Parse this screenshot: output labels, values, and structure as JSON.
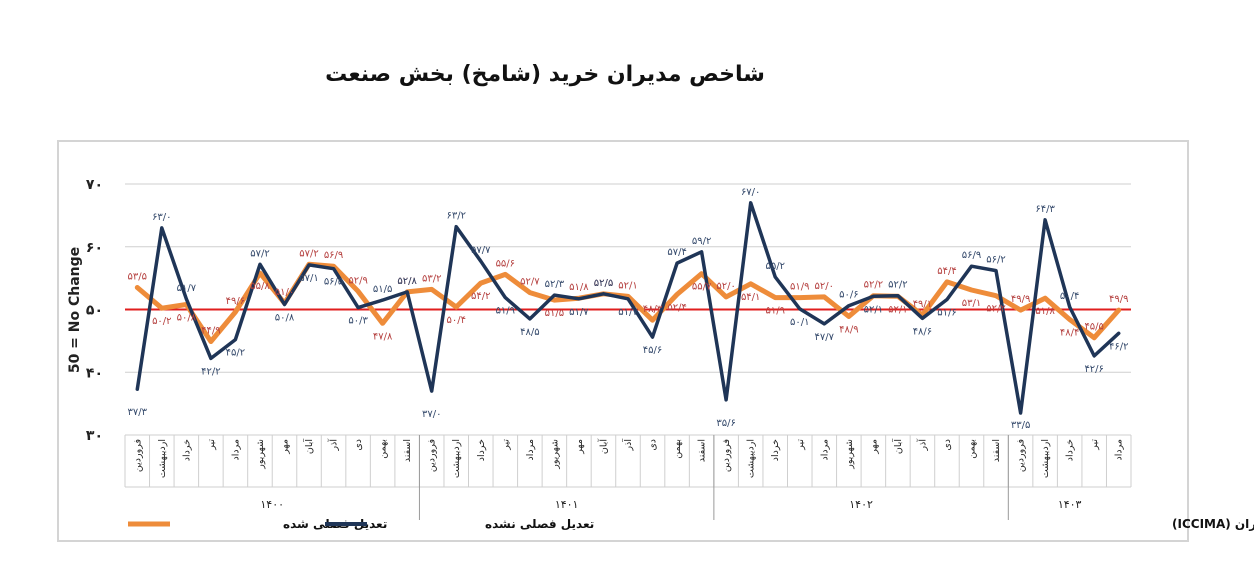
{
  "title": "شاخص مدیران خرید (شامخ) بخش صنعت",
  "source": "منبع: اتاق بازرگانی، صنایع، معادن و کشاورزی ایران (ICCIMA)",
  "chart_data": {
    "type": "line",
    "ylabel": "50 = No Change",
    "ylim": [
      30,
      70
    ],
    "yticks": [
      "۳۰",
      "۴۰",
      "۵۰",
      "۶۰",
      "۷۰"
    ],
    "reference_line": 50,
    "grid": true,
    "legend_position": "bottom-left",
    "categories": [
      "فروردین",
      "اردیبهشت",
      "خرداد",
      "تیر",
      "مرداد",
      "شهریور",
      "مهر",
      "آبان",
      "آذر",
      "دی",
      "بهمن",
      "اسفند",
      "فروردین",
      "اردیبهشت",
      "خرداد",
      "تیر",
      "مرداد",
      "شهریور",
      "مهر",
      "آبان",
      "آذر",
      "دی",
      "بهمن",
      "اسفند",
      "فروردین",
      "اردیبهشت",
      "خرداد",
      "تیر",
      "مرداد",
      "شهریور",
      "مهر",
      "آبان",
      "آذر",
      "دی",
      "بهمن",
      "اسفند",
      "فروردین",
      "اردیبهشت",
      "خرداد",
      "تیر",
      "مرداد"
    ],
    "years": [
      {
        "label": "۱۴۰۰",
        "months": 12
      },
      {
        "label": "۱۴۰۱",
        "months": 12
      },
      {
        "label": "۱۴۰۲",
        "months": 12
      },
      {
        "label": "۱۴۰۳",
        "months": 5
      }
    ],
    "series": [
      {
        "name": "تعدیل فصلی شده",
        "color": "#ee8c3a",
        "values": [
          53.5,
          50.2,
          50.8,
          44.9,
          49.6,
          55.8,
          51.0,
          57.2,
          56.9,
          52.9,
          47.8,
          52.8,
          53.2,
          50.4,
          54.2,
          55.6,
          52.7,
          51.5,
          51.8,
          52.5,
          52.1,
          48.3,
          52.4,
          55.7,
          52.0,
          54.1,
          51.9,
          51.9,
          52.0,
          48.9,
          52.2,
          52.1,
          49.1,
          54.4,
          53.1,
          52.2,
          49.9,
          51.8,
          48.4,
          45.5,
          49.9
        ],
        "labels": [
          "۵۳/۵",
          "۵۰/۲",
          "۵۰/۸",
          "۴۴/۹",
          "۴۹/۶",
          "۵۵/۸",
          "۵۱/۰",
          "۵۷/۲",
          "۵۶/۹",
          "۵۲/۹",
          "۴۷/۸",
          "۵۲/۸",
          "۵۳/۲",
          "۵۰/۴",
          "۵۴/۲",
          "۵۵/۶",
          "۵۲/۷",
          "۵۱/۵",
          "۵۱/۸",
          "۵۲/۵",
          "۵۲/۱",
          "۴۸/۳",
          "۵۲/۴",
          "۵۵/۷",
          "۵۲/۰",
          "۵۴/۱",
          "۵۱/۹",
          "۵۱/۹",
          "۵۲/۰",
          "۴۸/۹",
          "۵۲/۲",
          "۵۲/۱",
          "۴۹/۱",
          "۵۴/۴",
          "۵۳/۱",
          "۵۲/۲",
          "۴۹/۹",
          "۵۱/۸",
          "۴۸/۴",
          "۴۵/۵",
          "۴۹/۹"
        ]
      },
      {
        "name": "تعدیل فصلی نشده",
        "color": "#1f3557",
        "values": [
          37.3,
          63.0,
          51.7,
          42.2,
          45.2,
          57.2,
          50.8,
          57.1,
          56.5,
          50.3,
          51.5,
          52.8,
          37.0,
          63.2,
          57.7,
          51.9,
          48.5,
          52.3,
          51.7,
          52.5,
          51.7,
          45.6,
          57.4,
          59.2,
          35.6,
          67.0,
          55.2,
          50.1,
          47.7,
          50.6,
          52.1,
          52.2,
          48.6,
          51.6,
          56.9,
          56.2,
          33.5,
          64.3,
          50.4,
          42.6,
          46.2
        ],
        "labels": [
          "۳۷/۳",
          "۶۳/۰",
          "۵۱/۷",
          "۴۲/۲",
          "۴۵/۲",
          "۵۷/۲",
          "۵۰/۸",
          "۵۷/۱",
          "۵۶/۵",
          "۵۰/۳",
          "۵۱/۵",
          "۵۲/۸",
          "۳۷/۰",
          "۶۳/۲",
          "۵۷/۷",
          "۵۱/۹",
          "۴۸/۵",
          "۵۲/۳",
          "۵۱/۷",
          "۵۲/۵",
          "۵۱/۷",
          "۴۵/۶",
          "۵۷/۴",
          "۵۹/۲",
          "۳۵/۶",
          "۶۷/۰",
          "۵۵/۲",
          "۵۰/۱",
          "۴۷/۷",
          "۵۰/۶",
          "۵۲/۱",
          "۵۲/۲",
          "۴۸/۶",
          "۵۱/۶",
          "۵۶/۹",
          "۵۶/۲",
          "۳۳/۵",
          "۶۴/۳",
          "۵۰/۴",
          "۴۲/۶",
          "۴۶/۲"
        ]
      }
    ]
  },
  "colors": {
    "reference_line": "#e01e1e",
    "grid": "#cfcfcf",
    "year_sep": "#9a9a9a"
  }
}
